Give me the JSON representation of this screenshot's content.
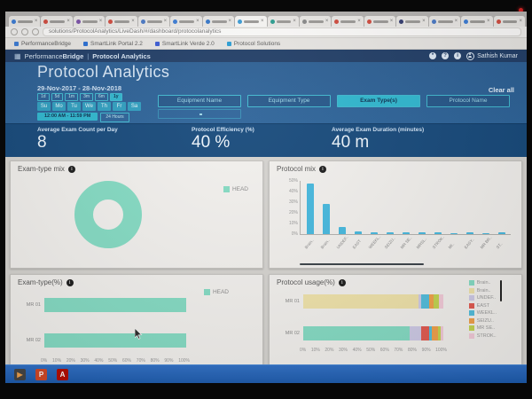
{
  "browser": {
    "url": "solutions/ProtocolAnalytics/LiveDash/#/dashboard/protocolanalytics",
    "tabs": [
      {
        "color": "#3b7bd4"
      },
      {
        "color": "#d04b3e"
      },
      {
        "color": "#7b52a8"
      },
      {
        "color": "#d04b3e"
      },
      {
        "color": "#4a78c4"
      },
      {
        "color": "#3b7bd4"
      },
      {
        "color": "#3577c8"
      },
      {
        "color": "#3b9bd4",
        "active": true
      },
      {
        "color": "#2a9d8f"
      },
      {
        "color": "#888888"
      },
      {
        "color": "#d04b3e"
      },
      {
        "color": "#d04b3e"
      },
      {
        "color": "#333b6e"
      },
      {
        "color": "#4a78c4"
      },
      {
        "color": "#3b7bd4"
      },
      {
        "color": "#d04b3e"
      }
    ],
    "bookmarks": [
      {
        "label": "PerformanceBridge",
        "color": "#3b7bd4"
      },
      {
        "label": "SmartLink Portal 2.2",
        "color": "#2a6fd4"
      },
      {
        "label": "SmartLink Verde 2.0",
        "color": "#3b5bd4"
      },
      {
        "label": "Protocol Solutions",
        "color": "#2a9dd4"
      }
    ]
  },
  "app_header": {
    "brand_regular": "Performance",
    "brand_bold": "Bridge",
    "divider": "|",
    "section": "Protocol Analytics",
    "user": "Sathish Kumar"
  },
  "hero": {
    "title": "Protocol Analytics",
    "date_range": "29-Nov-2017 - 28-Nov-2018",
    "clear_all": "Clear all",
    "quick_ranges": [
      "1d",
      "5d",
      "1m",
      "3m",
      "6m",
      "1y"
    ],
    "quick_active": "1y",
    "weekdays": [
      "Su",
      "Mo",
      "Tu",
      "We",
      "Th",
      "Fr",
      "Sa"
    ],
    "time_range": "12:00 AM - 11:59 PM",
    "hours_label": "24 Hours",
    "filters": [
      "Equipment Name",
      "Equipment Type",
      "Exam Type(s)",
      "Protocol Name"
    ],
    "active_filter": "Exam Type(s)"
  },
  "stats": [
    {
      "label": "Average Exam Count per Day",
      "value": "8"
    },
    {
      "label": "Protocol Efficiency (%)",
      "value": "40 %"
    },
    {
      "label": "Average Exam Duration (minutes)",
      "value": "40 m"
    }
  ],
  "chart_data": [
    {
      "type": "pie",
      "title": "Exam-type mix",
      "donut": true,
      "labels": [
        "HEAD"
      ],
      "values": [
        100
      ],
      "colors": [
        "#85dcc4"
      ],
      "legend": [
        {
          "label": "HEAD",
          "color": "#85dcc4"
        }
      ]
    },
    {
      "type": "bar",
      "title": "Protocol mix",
      "categories": [
        "Brain..",
        "Brain..",
        "UNDEF..",
        "EAST",
        "WEEKL..",
        "SEIZU..",
        "MR SE..",
        "MRSL..",
        "STROK..",
        "MI..",
        "EASY..",
        "MR BR..",
        "ST.."
      ],
      "values": [
        52,
        31,
        7,
        3,
        2,
        1.5,
        1.5,
        1.5,
        1.5,
        1,
        1.5,
        1,
        1.5
      ],
      "ylim": [
        0,
        55
      ],
      "yticks": [
        "0%",
        "10%",
        "20%",
        "30%",
        "40%",
        "50%"
      ],
      "bar_color": "#46b9df"
    },
    {
      "type": "bar-horizontal",
      "title": "Exam-type(%)",
      "categories": [
        "MR 01",
        "MR 02"
      ],
      "series": [
        {
          "name": "HEAD",
          "color": "#85dcc4",
          "values": [
            100,
            100
          ]
        }
      ],
      "xticks": [
        "0%",
        "10%",
        "20%",
        "30%",
        "40%",
        "50%",
        "60%",
        "70%",
        "80%",
        "90%",
        "100%"
      ],
      "legend": [
        {
          "label": "HEAD",
          "color": "#85dcc4"
        }
      ]
    },
    {
      "type": "stacked-bar-horizontal",
      "title": "Protocol usage(%)",
      "categories": [
        "MR 01",
        "MR 02"
      ],
      "series": [
        {
          "name": "Brain..",
          "color": "#85dcc4",
          "values": [
            0,
            76
          ]
        },
        {
          "name": "Brain..",
          "color": "#f0e3aa",
          "values": [
            82,
            0
          ]
        },
        {
          "name": "UNDEF..",
          "color": "#cfcbe7",
          "values": [
            2,
            8
          ]
        },
        {
          "name": "EAST",
          "color": "#e25a50",
          "values": [
            0,
            6
          ]
        },
        {
          "name": "WEEKL..",
          "color": "#52bedd",
          "values": [
            6,
            2
          ]
        },
        {
          "name": "SEIZU..",
          "color": "#f0a14b",
          "values": [
            3,
            4
          ]
        },
        {
          "name": "MR SE..",
          "color": "#c3d550",
          "values": [
            4,
            2
          ]
        },
        {
          "name": "STROK..",
          "color": "#f3cbd9",
          "values": [
            3,
            2
          ]
        }
      ],
      "xticks": [
        "0%",
        "10%",
        "20%",
        "30%",
        "40%",
        "50%",
        "60%",
        "70%",
        "80%",
        "90%",
        "100%"
      ]
    }
  ],
  "taskbar": {
    "icons": [
      {
        "name": "media-icon",
        "glyph": "▶",
        "bg": "#444444",
        "fg": "#f0a14b"
      },
      {
        "name": "powerpoint-icon",
        "glyph": "P",
        "bg": "#d24726",
        "fg": "#ffffff"
      },
      {
        "name": "acrobat-icon",
        "glyph": "A",
        "bg": "#b30b00",
        "fg": "#ffffff"
      }
    ]
  }
}
